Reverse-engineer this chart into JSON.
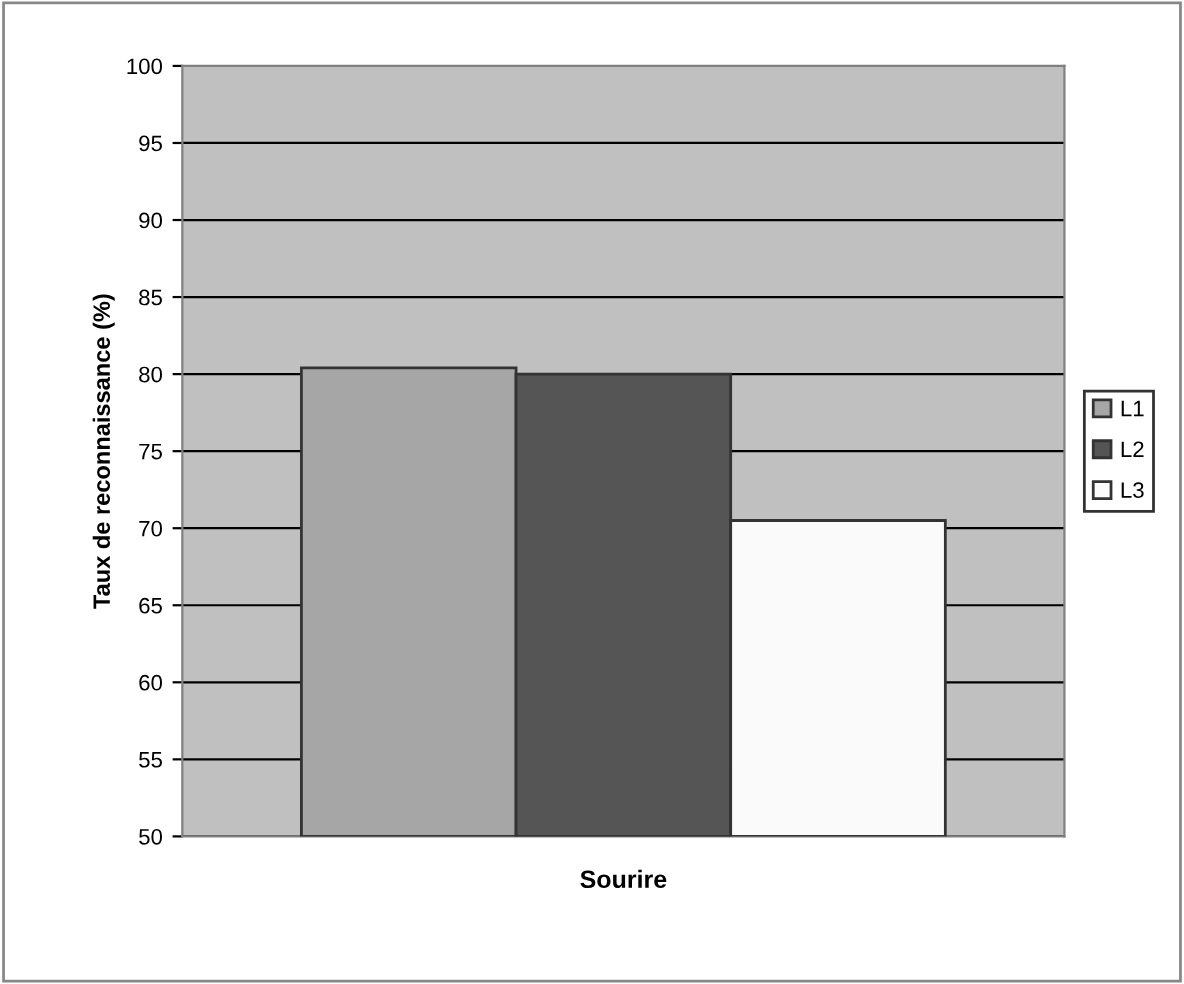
{
  "chart_data": {
    "type": "bar",
    "ylabel": "Taux de reconnaissance (%)",
    "categories": [
      "Sourire"
    ],
    "series": [
      {
        "name": "L1",
        "color": "#a6a6a6",
        "values": [
          80.4
        ]
      },
      {
        "name": "L2",
        "color": "#555555",
        "values": [
          80
        ]
      },
      {
        "name": "L3",
        "color": "#fafafa",
        "values": [
          70.5
        ]
      }
    ],
    "ylim": [
      50,
      100
    ],
    "yticks": [
      50,
      55,
      60,
      65,
      70,
      75,
      80,
      85,
      90,
      95,
      100
    ],
    "grid": "y",
    "legend": "right"
  }
}
